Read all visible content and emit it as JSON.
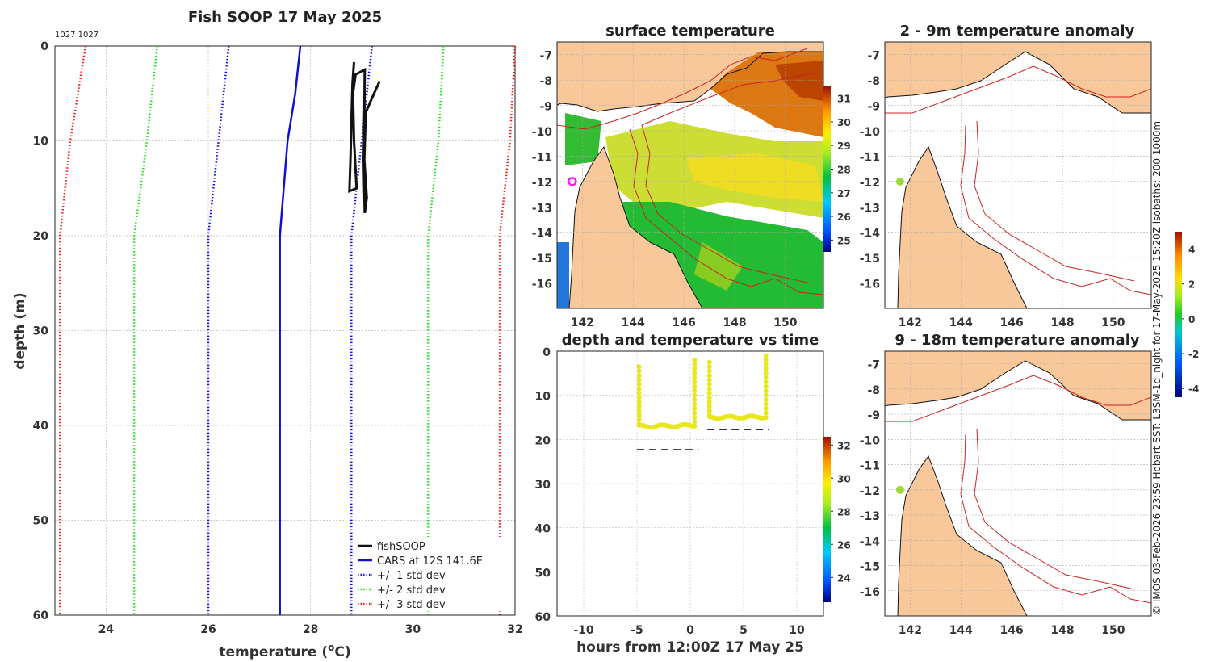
{
  "chart_data": [
    {
      "type": "line",
      "title": "Fish SOOP 17 May 2025",
      "corner_label": "1027 1027",
      "xlabel": "temperature (oC)",
      "xlabel_main": "temperature (",
      "xlabel_sup": "o",
      "xlabel_tail": "C)",
      "ylabel": "depth (m)",
      "xlim": [
        23,
        32
      ],
      "ylim": [
        0,
        60
      ],
      "xticks": [
        24,
        26,
        28,
        30,
        32
      ],
      "yticks": [
        0,
        10,
        20,
        30,
        40,
        50,
        60
      ],
      "series": [
        {
          "name": "CARS at 12S 141.6E",
          "color": "#1010dd",
          "style": "solid",
          "points": [
            [
              27.8,
              0
            ],
            [
              27.7,
              5
            ],
            [
              27.55,
              10
            ],
            [
              27.4,
              20
            ],
            [
              27.4,
              60
            ]
          ]
        },
        {
          "name": "+/- 1 std dev",
          "color": "#1010dd",
          "style": "dotted",
          "points": [
            [
              26.4,
              0
            ],
            [
              26.2,
              10
            ],
            [
              26.0,
              20
            ],
            [
              26.0,
              60
            ]
          ]
        },
        {
          "name": "+/- 1 std dev upper",
          "color": "#1010dd",
          "style": "dotted",
          "points": [
            [
              29.2,
              0
            ],
            [
              29.0,
              10
            ],
            [
              28.8,
              20
            ],
            [
              28.8,
              60
            ]
          ]
        },
        {
          "name": "+/- 2 std dev",
          "color": "#22dd22",
          "style": "dotted",
          "points": [
            [
              25.0,
              0
            ],
            [
              24.8,
              10
            ],
            [
              24.55,
              20
            ],
            [
              24.55,
              60
            ]
          ]
        },
        {
          "name": "+/- 2 std dev upper",
          "color": "#22dd22",
          "style": "dotted",
          "points": [
            [
              30.6,
              0
            ],
            [
              30.5,
              10
            ],
            [
              30.3,
              20
            ],
            [
              30.3,
              60
            ]
          ]
        },
        {
          "name": "+/- 3 std dev",
          "color": "#ee2020",
          "style": "dotted",
          "points": [
            [
              23.6,
              0
            ],
            [
              23.3,
              10
            ],
            [
              23.1,
              20
            ],
            [
              23.1,
              60
            ]
          ]
        },
        {
          "name": "+/- 3 std dev upper",
          "color": "#ee2020",
          "style": "dotted",
          "points": [
            [
              32.0,
              0
            ],
            [
              31.9,
              10
            ],
            [
              31.7,
              20
            ],
            [
              31.7,
              60
            ]
          ]
        },
        {
          "name": "fishSOOP",
          "color": "#111111",
          "style": "solid",
          "points": [
            [
              28.85,
              1.7
            ],
            [
              28.82,
              4
            ],
            [
              28.8,
              8
            ],
            [
              28.78,
              12
            ],
            [
              28.76,
              15.3
            ],
            [
              28.9,
              15.0
            ],
            [
              28.85,
              10
            ],
            [
              28.83,
              5
            ],
            [
              28.88,
              3
            ],
            [
              29.06,
              2.5
            ],
            [
              29.05,
              8
            ],
            [
              29.04,
              12
            ],
            [
              29.06,
              17.6
            ],
            [
              29.1,
              16
            ],
            [
              29.05,
              12
            ],
            [
              29.08,
              7
            ],
            [
              29.2,
              5.5
            ],
            [
              29.35,
              3.7
            ]
          ]
        }
      ],
      "legend": [
        "fishSOOP",
        "CARS at 12S 141.6E",
        "+/- 1 std dev",
        "+/- 2 std dev",
        "+/- 3 std dev"
      ],
      "legend_colors": [
        "#111111",
        "#1010dd",
        "#1010dd",
        "#22dd22",
        "#ee2020"
      ],
      "legend_styles": [
        "solid",
        "solid",
        "dotted",
        "dotted",
        "dotted"
      ],
      "legend_position": "bottom-right"
    },
    {
      "type": "heatmap",
      "title": "surface temperature",
      "xlim": [
        141,
        151.5
      ],
      "ylim": [
        -17,
        -6.5
      ],
      "xticks": [
        142,
        144,
        146,
        148,
        150
      ],
      "yticks": [
        -7,
        -8,
        -9,
        -10,
        -11,
        -12,
        -13,
        -14,
        -15,
        -16
      ],
      "colorbar_ticks": [
        31,
        30,
        29,
        28,
        27,
        26,
        25
      ],
      "colorbar_range": [
        24.5,
        31.5
      ],
      "land_color": "#f9c89a",
      "marker": {
        "lon": 141.6,
        "lat": -12,
        "color": "#ee22ee"
      }
    },
    {
      "type": "scatter",
      "title": "depth and temperature vs time",
      "xlabel": "hours from 12:00Z 17 May 25",
      "xlim": [
        -12.5,
        12.5
      ],
      "ylim": [
        0,
        60
      ],
      "xticks": [
        -10,
        -5,
        0,
        5,
        10
      ],
      "yticks": [
        0,
        10,
        20,
        30,
        40,
        50,
        60
      ],
      "colorbar_ticks": [
        32,
        30,
        28,
        26,
        24
      ],
      "colorbar_range": [
        22.5,
        32.5
      ],
      "marker_color": "#e7e71a",
      "segment1": {
        "t_start": -4.8,
        "t_end": 0.4,
        "surface_depth": 3.5,
        "bottom_depth": 17
      },
      "segment2": {
        "t_start": 1.8,
        "t_end": 7.1,
        "surface_depth": 2.5,
        "bottom_depth": 15
      },
      "dashes": [
        {
          "t_start": -5.0,
          "t_end": 0.8,
          "depth": 22.3
        },
        {
          "t_start": 1.6,
          "t_end": 7.4,
          "depth": 17.8
        }
      ]
    },
    {
      "type": "heatmap",
      "title": "2 - 9m temperature anomaly",
      "xlim": [
        141,
        151.5
      ],
      "ylim": [
        -17,
        -6.5
      ],
      "xticks": [
        142,
        144,
        146,
        148,
        150
      ],
      "yticks": [
        -7,
        -8,
        -9,
        -10,
        -11,
        -12,
        -13,
        -14,
        -15,
        -16
      ],
      "marker": {
        "lon": 141.6,
        "lat": -12,
        "color": "#9bdc33"
      }
    },
    {
      "type": "heatmap",
      "title": "9 - 18m temperature anomaly",
      "xlim": [
        141,
        151.5
      ],
      "ylim": [
        -17,
        -6.5
      ],
      "xticks": [
        142,
        144,
        146,
        148,
        150
      ],
      "yticks": [
        -7,
        -8,
        -9,
        -10,
        -11,
        -12,
        -13,
        -14,
        -15,
        -16
      ],
      "colorbar_ticks": [
        4,
        2,
        0,
        -2,
        -4
      ],
      "colorbar_range": [
        -4.5,
        5
      ],
      "marker": {
        "lon": 141.6,
        "lat": -12,
        "color": "#9bdc33"
      }
    }
  ],
  "side_text": "© IMOS 03-Feb-2026 23:59 Hobart SST: L3SM-1d_night for 17-May-2025 15:20Z isobaths: 200  1000m"
}
